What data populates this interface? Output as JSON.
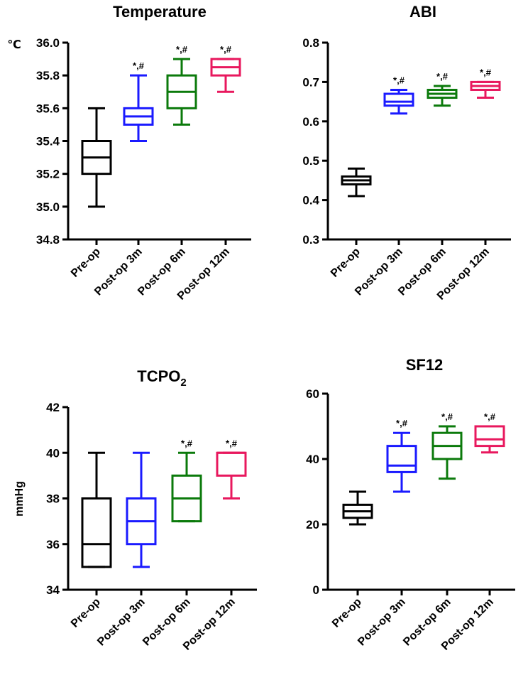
{
  "chart_data": [
    {
      "type": "box",
      "title": "Temperature",
      "title_sub": "",
      "ylabel": "℃",
      "ylim": [
        34.8,
        36.0
      ],
      "yticks": [
        34.8,
        35.0,
        35.2,
        35.4,
        35.6,
        35.8,
        36.0
      ],
      "ytick_labels": [
        "34.8",
        "35.0",
        "35.2",
        "35.4",
        "35.6",
        "35.8",
        "36.0"
      ],
      "categories": [
        "Pre-op",
        "Post-op 3m",
        "Post-op 6m",
        "Post-op 12m"
      ],
      "boxes": [
        {
          "min": 35.0,
          "q1": 35.2,
          "median": 35.3,
          "q3": 35.4,
          "max": 35.6,
          "sig": ""
        },
        {
          "min": 35.4,
          "q1": 35.5,
          "median": 35.55,
          "q3": 35.6,
          "max": 35.8,
          "sig": "*,#"
        },
        {
          "min": 35.5,
          "q1": 35.6,
          "median": 35.7,
          "q3": 35.8,
          "max": 35.9,
          "sig": "*,#"
        },
        {
          "min": 35.7,
          "q1": 35.8,
          "median": 35.85,
          "q3": 35.9,
          "max": 35.9,
          "sig": "*,#"
        }
      ]
    },
    {
      "type": "box",
      "title": "ABI",
      "title_sub": "",
      "ylabel": "",
      "ylim": [
        0.3,
        0.8
      ],
      "yticks": [
        0.3,
        0.4,
        0.5,
        0.6,
        0.7,
        0.8
      ],
      "ytick_labels": [
        "0.3",
        "0.4",
        "0.5",
        "0.6",
        "0.7",
        "0.8"
      ],
      "categories": [
        "Pre-op",
        "Post-op 3m",
        "Post-op 6m",
        "Post-op 12m"
      ],
      "boxes": [
        {
          "min": 0.41,
          "q1": 0.44,
          "median": 0.45,
          "q3": 0.46,
          "max": 0.48,
          "sig": ""
        },
        {
          "min": 0.62,
          "q1": 0.64,
          "median": 0.65,
          "q3": 0.67,
          "max": 0.68,
          "sig": "*,#"
        },
        {
          "min": 0.64,
          "q1": 0.66,
          "median": 0.67,
          "q3": 0.68,
          "max": 0.69,
          "sig": "*,#"
        },
        {
          "min": 0.66,
          "q1": 0.68,
          "median": 0.69,
          "q3": 0.7,
          "max": 0.7,
          "sig": "*,#"
        }
      ]
    },
    {
      "type": "box",
      "title": "TCPO",
      "title_sub": "2",
      "ylabel": "mmHg",
      "ylim": [
        34,
        42
      ],
      "yticks": [
        34,
        36,
        38,
        40,
        42
      ],
      "ytick_labels": [
        "34",
        "36",
        "38",
        "40",
        "42"
      ],
      "categories": [
        "Pre-op",
        "Post-op 3m",
        "Post-op 6m",
        "Post-op 12m"
      ],
      "boxes": [
        {
          "min": 35,
          "q1": 35,
          "median": 36,
          "q3": 38,
          "max": 40,
          "sig": ""
        },
        {
          "min": 35,
          "q1": 36,
          "median": 37,
          "q3": 38,
          "max": 40,
          "sig": ""
        },
        {
          "min": 37,
          "q1": 37,
          "median": 38,
          "q3": 39,
          "max": 40,
          "sig": "*,#"
        },
        {
          "min": 38,
          "q1": 39,
          "median": 40,
          "q3": 40,
          "max": 40,
          "sig": "*,#"
        }
      ]
    },
    {
      "type": "box",
      "title": "SF12",
      "title_sub": "",
      "ylabel": "",
      "ylim": [
        0,
        60
      ],
      "yticks": [
        0,
        20,
        40,
        60
      ],
      "ytick_labels": [
        "0",
        "20",
        "40",
        "60"
      ],
      "categories": [
        "Pre-op",
        "Post-op 3m",
        "Post-op 6m",
        "Post-op 12m"
      ],
      "boxes": [
        {
          "min": 20,
          "q1": 22,
          "median": 24,
          "q3": 26,
          "max": 30,
          "sig": ""
        },
        {
          "min": 30,
          "q1": 36,
          "median": 38,
          "q3": 44,
          "max": 48,
          "sig": "*,#"
        },
        {
          "min": 34,
          "q1": 40,
          "median": 44,
          "q3": 48,
          "max": 50,
          "sig": "*,#"
        },
        {
          "min": 42,
          "q1": 44,
          "median": 46,
          "q3": 50,
          "max": 50,
          "sig": "*,#"
        }
      ]
    }
  ],
  "colors": [
    "#000000",
    "#1a1aff",
    "#0b7a0b",
    "#e8185e"
  ]
}
